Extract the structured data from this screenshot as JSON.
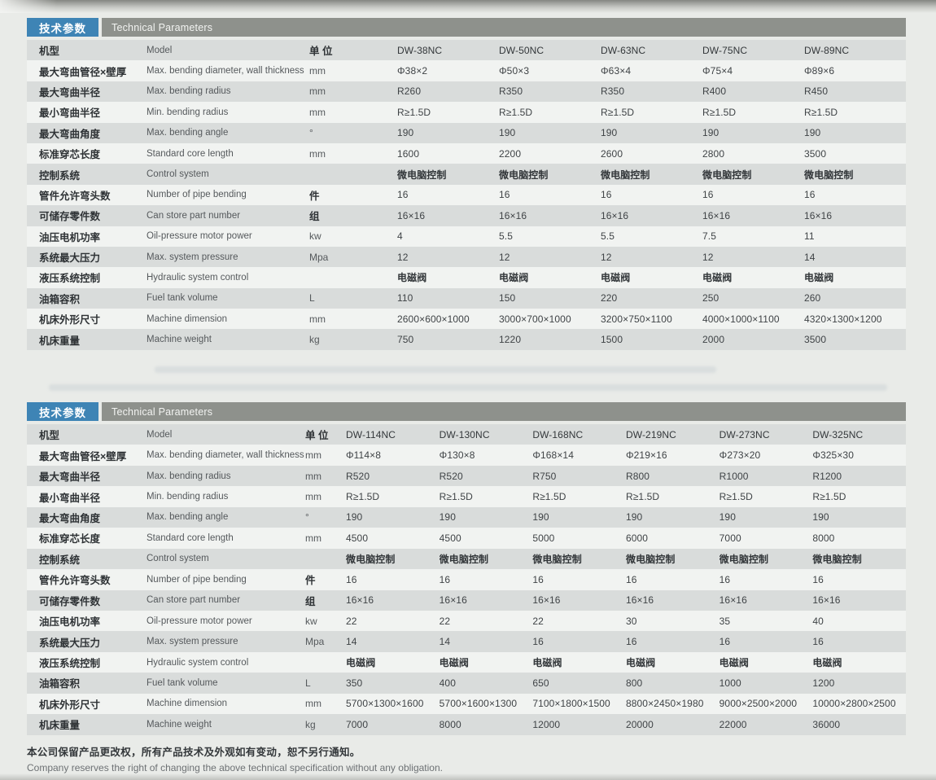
{
  "colors": {
    "accent_blue": "#3e84b5",
    "header_gray": "#8e918c",
    "row_shade": "#d9dcdb",
    "row_light": "#f1f3f1"
  },
  "footer": {
    "note_cn": "本公司保留产品更改权，所有产品技术及外观如有变动，恕不另行通知。",
    "note_en": "Company reserves the right of changing the above technical specification without any obligation."
  },
  "tables": [
    {
      "title_cn": "技术参数",
      "title_en": "Technical Parameters",
      "rows": [
        {
          "cn": "机型",
          "en": "Model",
          "unit": "单 位",
          "header": true,
          "values": [
            "DW-38NC",
            "DW-50NC",
            "DW-63NC",
            "DW-75NC",
            "DW-89NC"
          ]
        },
        {
          "cn": "最大弯曲管径×壁厚",
          "en": "Max. bending diameter, wall thickness",
          "unit": "mm",
          "values": [
            "Φ38×2",
            "Φ50×3",
            "Φ63×4",
            "Φ75×4",
            "Φ89×6"
          ]
        },
        {
          "cn": "最大弯曲半径",
          "en": "Max. bending radius",
          "unit": "mm",
          "values": [
            "R260",
            "R350",
            "R350",
            "R400",
            "R450"
          ]
        },
        {
          "cn": "最小弯曲半径",
          "en": "Min. bending radius",
          "unit": "mm",
          "values": [
            "R≥1.5D",
            "R≥1.5D",
            "R≥1.5D",
            "R≥1.5D",
            "R≥1.5D"
          ]
        },
        {
          "cn": "最大弯曲角度",
          "en": "Max. bending angle",
          "unit": "°",
          "values": [
            "190",
            "190",
            "190",
            "190",
            "190"
          ]
        },
        {
          "cn": "标准穿芯长度",
          "en": "Standard core length",
          "unit": "mm",
          "values": [
            "1600",
            "2200",
            "2600",
            "2800",
            "3500"
          ]
        },
        {
          "cn": "控制系统",
          "en": "Control system",
          "unit": "",
          "bold_values": true,
          "values": [
            "微电脑控制",
            "微电脑控制",
            "微电脑控制",
            "微电脑控制",
            "微电脑控制"
          ]
        },
        {
          "cn": "管件允许弯头数",
          "en": "Number of pipe bending",
          "unit": "件",
          "values": [
            "16",
            "16",
            "16",
            "16",
            "16"
          ]
        },
        {
          "cn": "可储存零件数",
          "en": "Can store part number",
          "unit": "组",
          "values": [
            "16×16",
            "16×16",
            "16×16",
            "16×16",
            "16×16"
          ]
        },
        {
          "cn": "油压电机功率",
          "en": "Oil-pressure motor power",
          "unit": "kw",
          "values": [
            "4",
            "5.5",
            "5.5",
            "7.5",
            "11"
          ]
        },
        {
          "cn": "系统最大压力",
          "en": "Max. system pressure",
          "unit": "Mpa",
          "values": [
            "12",
            "12",
            "12",
            "12",
            "14"
          ]
        },
        {
          "cn": "液压系统控制",
          "en": "Hydraulic system control",
          "unit": "",
          "bold_values": true,
          "values": [
            "电磁阀",
            "电磁阀",
            "电磁阀",
            "电磁阀",
            "电磁阀"
          ]
        },
        {
          "cn": "油箱容积",
          "en": "Fuel tank volume",
          "unit": "L",
          "values": [
            "110",
            "150",
            "220",
            "250",
            "260"
          ]
        },
        {
          "cn": "机床外形尺寸",
          "en": "Machine dimension",
          "unit": "mm",
          "values": [
            "2600×600×1000",
            "3000×700×1000",
            "3200×750×1100",
            "4000×1000×1100",
            "4320×1300×1200"
          ]
        },
        {
          "cn": "机床重量",
          "en": "Machine weight",
          "unit": "kg",
          "values": [
            "750",
            "1220",
            "1500",
            "2000",
            "3500"
          ]
        }
      ]
    },
    {
      "title_cn": "技术参数",
      "title_en": "Technical Parameters",
      "rows": [
        {
          "cn": "机型",
          "en": "Model",
          "unit": "单 位",
          "header": true,
          "values": [
            "DW-114NC",
            "DW-130NC",
            "DW-168NC",
            "DW-219NC",
            "DW-273NC",
            "DW-325NC"
          ]
        },
        {
          "cn": "最大弯曲管径×壁厚",
          "en": "Max. bending diameter, wall thickness",
          "unit": "mm",
          "values": [
            "Φ114×8",
            "Φ130×8",
            "Φ168×14",
            "Φ219×16",
            "Φ273×20",
            "Φ325×30"
          ]
        },
        {
          "cn": "最大弯曲半径",
          "en": "Max. bending radius",
          "unit": "mm",
          "values": [
            "R520",
            "R520",
            "R750",
            "R800",
            "R1000",
            "R1200"
          ]
        },
        {
          "cn": "最小弯曲半径",
          "en": "Min. bending radius",
          "unit": "mm",
          "values": [
            "R≥1.5D",
            "R≥1.5D",
            "R≥1.5D",
            "R≥1.5D",
            "R≥1.5D",
            "R≥1.5D"
          ]
        },
        {
          "cn": "最大弯曲角度",
          "en": "Max. bending angle",
          "unit": "°",
          "values": [
            "190",
            "190",
            "190",
            "190",
            "190",
            "190"
          ]
        },
        {
          "cn": "标准穿芯长度",
          "en": "Standard core length",
          "unit": "mm",
          "values": [
            "4500",
            "4500",
            "5000",
            "6000",
            "7000",
            "8000"
          ]
        },
        {
          "cn": "控制系统",
          "en": "Control system",
          "unit": "",
          "bold_values": true,
          "values": [
            "微电脑控制",
            "微电脑控制",
            "微电脑控制",
            "微电脑控制",
            "微电脑控制",
            "微电脑控制"
          ]
        },
        {
          "cn": "管件允许弯头数",
          "en": "Number of pipe bending",
          "unit": "件",
          "values": [
            "16",
            "16",
            "16",
            "16",
            "16",
            "16"
          ]
        },
        {
          "cn": "可储存零件数",
          "en": "Can store part number",
          "unit": "组",
          "values": [
            "16×16",
            "16×16",
            "16×16",
            "16×16",
            "16×16",
            "16×16"
          ]
        },
        {
          "cn": "油压电机功率",
          "en": "Oil-pressure motor power",
          "unit": "kw",
          "values": [
            "22",
            "22",
            "22",
            "30",
            "35",
            "40"
          ]
        },
        {
          "cn": "系统最大压力",
          "en": "Max. system pressure",
          "unit": "Mpa",
          "values": [
            "14",
            "14",
            "16",
            "16",
            "16",
            "16"
          ]
        },
        {
          "cn": "液压系统控制",
          "en": "Hydraulic system control",
          "unit": "",
          "bold_values": true,
          "values": [
            "电磁阀",
            "电磁阀",
            "电磁阀",
            "电磁阀",
            "电磁阀",
            "电磁阀"
          ]
        },
        {
          "cn": "油箱容积",
          "en": "Fuel tank volume",
          "unit": "L",
          "values": [
            "350",
            "400",
            "650",
            "800",
            "1000",
            "1200"
          ]
        },
        {
          "cn": "机床外形尺寸",
          "en": "Machine dimension",
          "unit": "mm",
          "values": [
            "5700×1300×1600",
            "5700×1600×1300",
            "7100×1800×1500",
            "8800×2450×1980",
            "9000×2500×2000",
            "10000×2800×2500"
          ]
        },
        {
          "cn": "机床重量",
          "en": "Machine weight",
          "unit": "kg",
          "values": [
            "7000",
            "8000",
            "12000",
            "20000",
            "22000",
            "36000"
          ]
        }
      ]
    }
  ]
}
